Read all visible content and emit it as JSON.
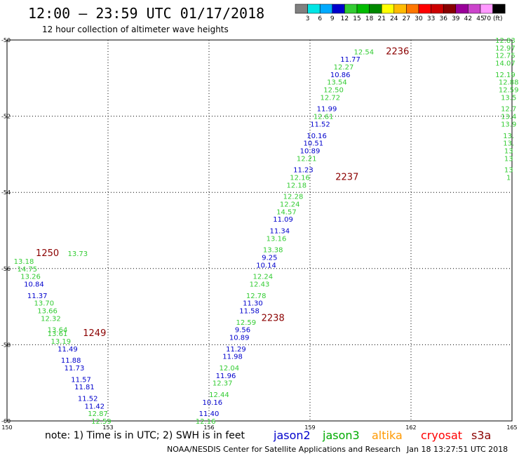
{
  "header": {
    "title": "12:00 – 23:59 UTC 01/17/2018",
    "subtitle": "12 hour collection of altimeter wave heights"
  },
  "legend": {
    "colors": [
      "#808080",
      "#00e5e5",
      "#00aaff",
      "#0000cc",
      "#33cc33",
      "#00bb00",
      "#008800",
      "#ffff00",
      "#ffbb00",
      "#ff7700",
      "#ff0000",
      "#cc0000",
      "#880000",
      "#990099",
      "#cc44cc",
      "#ff99ff",
      "#000000"
    ],
    "labels": [
      "3",
      "6",
      "9",
      "12",
      "15",
      "18",
      "21",
      "24",
      "27",
      "30",
      "33",
      "36",
      "39",
      "42",
      "45",
      "70 (ft)"
    ]
  },
  "note": "note: 1) Time is in UTC; 2) SWH is in feet",
  "missions": [
    {
      "name": "jason2",
      "color": "#0000cc"
    },
    {
      "name": "jason3",
      "color": "#00aa00"
    },
    {
      "name": "altika",
      "color": "#ff9900"
    },
    {
      "name": "cryosat",
      "color": "#ff0000"
    },
    {
      "name": "s3a",
      "color": "#8b0000"
    }
  ],
  "footer": {
    "credit": "NOAA/NESDIS Center for Satellite Applications and Research",
    "timestamp": "Jan 18 13:27:51 UTC 2018"
  },
  "chart_data": {
    "type": "scatter",
    "xlim": [
      150,
      165
    ],
    "ylim": [
      -60,
      -50
    ],
    "x_ticks": [
      "150",
      "153",
      "156",
      "159",
      "162",
      "165"
    ],
    "y_ticks": [
      "-50",
      "-52",
      "-54",
      "-56",
      "-58",
      "-60"
    ],
    "grid": true,
    "pass_labels": [
      {
        "text": "2236",
        "x": 161.6,
        "y": -50.3
      },
      {
        "text": "2237",
        "x": 160.1,
        "y": -53.6
      },
      {
        "text": "2238",
        "x": 157.9,
        "y": -57.3
      },
      {
        "text": "1250",
        "x": 151.2,
        "y": -55.6
      },
      {
        "text": "1249",
        "x": 152.6,
        "y": -57.7
      }
    ],
    "series": [
      {
        "points": [
          {
            "x": 152.1,
            "y": -55.6,
            "v": "13.73",
            "c": "#33cc33"
          },
          {
            "x": 150.5,
            "y": -55.8,
            "v": "13.18",
            "c": "#33cc33"
          },
          {
            "x": 150.6,
            "y": -56.0,
            "v": "14.75",
            "c": "#33cc33"
          },
          {
            "x": 150.7,
            "y": -56.2,
            "v": "13.26",
            "c": "#33cc33"
          },
          {
            "x": 150.8,
            "y": -56.4,
            "v": "10.84",
            "c": "#0000cc"
          },
          {
            "x": 150.9,
            "y": -56.7,
            "v": "11.37",
            "c": "#0000cc"
          },
          {
            "x": 151.1,
            "y": -56.9,
            "v": "13.70",
            "c": "#33cc33"
          },
          {
            "x": 151.2,
            "y": -57.1,
            "v": "13.66",
            "c": "#33cc33"
          },
          {
            "x": 151.3,
            "y": -57.3,
            "v": "12.32",
            "c": "#33cc33"
          },
          {
            "x": 151.5,
            "y": -57.6,
            "v": "13.64",
            "c": "#33cc33"
          },
          {
            "x": 151.5,
            "y": -57.7,
            "v": "13.61",
            "c": "#33cc33"
          },
          {
            "x": 151.6,
            "y": -57.9,
            "v": "13.19",
            "c": "#33cc33"
          },
          {
            "x": 151.8,
            "y": -58.1,
            "v": "11.49",
            "c": "#0000cc"
          },
          {
            "x": 151.9,
            "y": -58.4,
            "v": "11.88",
            "c": "#0000cc"
          },
          {
            "x": 152.0,
            "y": -58.6,
            "v": "11.73",
            "c": "#0000cc"
          },
          {
            "x": 152.2,
            "y": -58.9,
            "v": "11.57",
            "c": "#0000cc"
          },
          {
            "x": 152.3,
            "y": -59.1,
            "v": "11.81",
            "c": "#0000cc"
          },
          {
            "x": 152.4,
            "y": -59.4,
            "v": "11.52",
            "c": "#0000cc"
          },
          {
            "x": 152.6,
            "y": -59.6,
            "v": "11.42",
            "c": "#0000cc"
          },
          {
            "x": 152.7,
            "y": -59.8,
            "v": "12.87",
            "c": "#33cc33"
          },
          {
            "x": 152.8,
            "y": -60.0,
            "v": "12.59",
            "c": "#33cc33"
          }
        ]
      },
      {
        "points": [
          {
            "x": 160.6,
            "y": -50.3,
            "v": "12.54",
            "c": "#33cc33"
          },
          {
            "x": 160.2,
            "y": -50.5,
            "v": "11.77",
            "c": "#0000cc"
          },
          {
            "x": 160.0,
            "y": -50.7,
            "v": "12.27",
            "c": "#33cc33"
          },
          {
            "x": 159.9,
            "y": -50.9,
            "v": "10.86",
            "c": "#0000cc"
          },
          {
            "x": 159.8,
            "y": -51.1,
            "v": "13.54",
            "c": "#33cc33"
          },
          {
            "x": 159.7,
            "y": -51.3,
            "v": "12.50",
            "c": "#33cc33"
          },
          {
            "x": 159.6,
            "y": -51.5,
            "v": "12.72",
            "c": "#33cc33"
          },
          {
            "x": 159.5,
            "y": -51.8,
            "v": "11.99",
            "c": "#0000cc"
          },
          {
            "x": 159.4,
            "y": -52.0,
            "v": "12.61",
            "c": "#33cc33"
          },
          {
            "x": 159.3,
            "y": -52.2,
            "v": "11.52",
            "c": "#0000cc"
          },
          {
            "x": 159.2,
            "y": -52.5,
            "v": "10.16",
            "c": "#0000cc"
          },
          {
            "x": 159.1,
            "y": -52.7,
            "v": "10.51",
            "c": "#0000cc"
          },
          {
            "x": 159.0,
            "y": -52.9,
            "v": "10.89",
            "c": "#0000cc"
          },
          {
            "x": 158.9,
            "y": -53.1,
            "v": "12.21",
            "c": "#33cc33"
          },
          {
            "x": 158.8,
            "y": -53.4,
            "v": "11.23",
            "c": "#0000cc"
          },
          {
            "x": 158.7,
            "y": -53.6,
            "v": "12.16",
            "c": "#33cc33"
          },
          {
            "x": 158.6,
            "y": -53.8,
            "v": "12.18",
            "c": "#33cc33"
          },
          {
            "x": 158.5,
            "y": -54.1,
            "v": "12.28",
            "c": "#33cc33"
          },
          {
            "x": 158.4,
            "y": -54.3,
            "v": "12.24",
            "c": "#33cc33"
          },
          {
            "x": 158.3,
            "y": -54.5,
            "v": "14.57",
            "c": "#33cc33"
          },
          {
            "x": 158.2,
            "y": -54.7,
            "v": "11.09",
            "c": "#0000cc"
          },
          {
            "x": 158.1,
            "y": -55.0,
            "v": "11.34",
            "c": "#0000cc"
          },
          {
            "x": 158.0,
            "y": -55.2,
            "v": "13.16",
            "c": "#33cc33"
          },
          {
            "x": 157.9,
            "y": -55.5,
            "v": "13.38",
            "c": "#33cc33"
          },
          {
            "x": 157.8,
            "y": -55.7,
            "v": "9.25",
            "c": "#0000cc"
          },
          {
            "x": 157.7,
            "y": -55.9,
            "v": "10.14",
            "c": "#0000cc"
          },
          {
            "x": 157.6,
            "y": -56.2,
            "v": "12.24",
            "c": "#33cc33"
          },
          {
            "x": 157.5,
            "y": -56.4,
            "v": "12.43",
            "c": "#33cc33"
          },
          {
            "x": 157.4,
            "y": -56.7,
            "v": "12.78",
            "c": "#33cc33"
          },
          {
            "x": 157.3,
            "y": -56.9,
            "v": "11.30",
            "c": "#0000cc"
          },
          {
            "x": 157.2,
            "y": -57.1,
            "v": "11.58",
            "c": "#0000cc"
          },
          {
            "x": 157.1,
            "y": -57.4,
            "v": "12.59",
            "c": "#33cc33"
          },
          {
            "x": 157.0,
            "y": -57.6,
            "v": "9.56",
            "c": "#0000cc"
          },
          {
            "x": 156.9,
            "y": -57.8,
            "v": "10.89",
            "c": "#0000cc"
          },
          {
            "x": 156.8,
            "y": -58.1,
            "v": "11.29",
            "c": "#0000cc"
          },
          {
            "x": 156.7,
            "y": -58.3,
            "v": "11.98",
            "c": "#0000cc"
          },
          {
            "x": 156.6,
            "y": -58.6,
            "v": "12.04",
            "c": "#33cc33"
          },
          {
            "x": 156.5,
            "y": -58.8,
            "v": "11.96",
            "c": "#0000cc"
          },
          {
            "x": 156.4,
            "y": -59.0,
            "v": "12.37",
            "c": "#33cc33"
          },
          {
            "x": 156.3,
            "y": -59.3,
            "v": "12.44",
            "c": "#33cc33"
          },
          {
            "x": 156.1,
            "y": -59.5,
            "v": "10.16",
            "c": "#0000cc"
          },
          {
            "x": 156.0,
            "y": -59.8,
            "v": "11.40",
            "c": "#0000cc"
          },
          {
            "x": 155.9,
            "y": -60.0,
            "v": "12.16",
            "c": "#33cc33"
          }
        ]
      },
      {
        "points": [
          {
            "x": 164.8,
            "y": -50.0,
            "v": "12.83",
            "c": "#33cc33"
          },
          {
            "x": 164.8,
            "y": -50.2,
            "v": "12.97",
            "c": "#33cc33"
          },
          {
            "x": 164.8,
            "y": -50.4,
            "v": "12.75",
            "c": "#33cc33"
          },
          {
            "x": 164.8,
            "y": -50.6,
            "v": "14.07",
            "c": "#33cc33"
          },
          {
            "x": 164.8,
            "y": -50.9,
            "v": "12.19",
            "c": "#33cc33"
          },
          {
            "x": 164.9,
            "y": -51.1,
            "v": "12.88",
            "c": "#33cc33"
          },
          {
            "x": 164.9,
            "y": -51.3,
            "v": "12.59",
            "c": "#33cc33"
          },
          {
            "x": 164.9,
            "y": -51.5,
            "v": "13.5",
            "c": "#33cc33"
          },
          {
            "x": 164.9,
            "y": -51.8,
            "v": "12.7",
            "c": "#33cc33"
          },
          {
            "x": 164.9,
            "y": -52.0,
            "v": "13.4",
            "c": "#33cc33"
          },
          {
            "x": 164.9,
            "y": -52.2,
            "v": "13.9",
            "c": "#33cc33"
          },
          {
            "x": 164.9,
            "y": -52.5,
            "v": "13.",
            "c": "#33cc33"
          },
          {
            "x": 164.9,
            "y": -52.7,
            "v": "13.",
            "c": "#33cc33"
          },
          {
            "x": 164.9,
            "y": -52.9,
            "v": "13",
            "c": "#33cc33"
          },
          {
            "x": 164.9,
            "y": -53.1,
            "v": "13",
            "c": "#33cc33"
          },
          {
            "x": 164.9,
            "y": -53.4,
            "v": "13",
            "c": "#33cc33"
          },
          {
            "x": 164.9,
            "y": -53.6,
            "v": "1",
            "c": "#33cc33"
          }
        ]
      }
    ]
  }
}
